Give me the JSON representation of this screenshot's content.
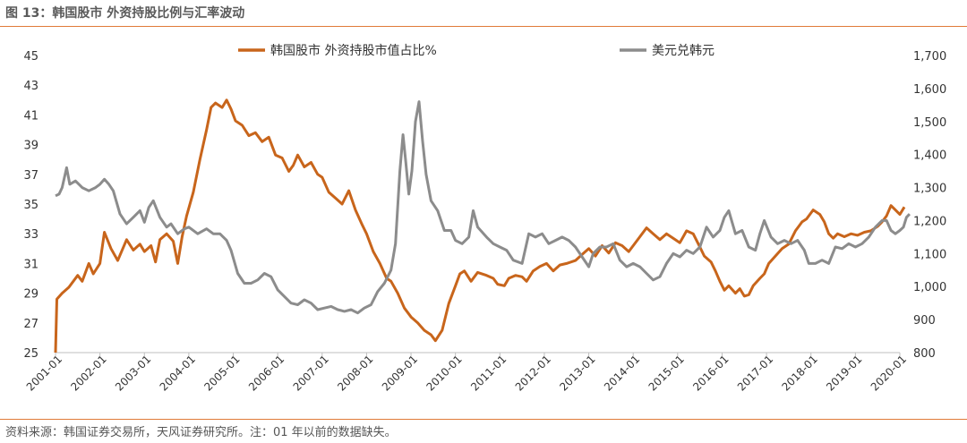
{
  "header": {
    "title": "图 13：韩国股市 外资持股比例与汇率波动"
  },
  "footer": {
    "source": "资料来源：韩国证券交易所，天风证券研究所。注：01 年以前的数据缺失。"
  },
  "colors": {
    "orange": "#C8651B",
    "gray": "#8C8C8C",
    "rule": "#E07B39"
  },
  "chart_data": {
    "type": "line",
    "title": "",
    "legend_placement": "top",
    "grid": false,
    "x_ticks": [
      "2001-01",
      "2002-01",
      "2003-01",
      "2004-01",
      "2005-01",
      "2006-01",
      "2007-01",
      "2008-01",
      "2009-01",
      "2010-01",
      "2011-01",
      "2012-01",
      "2013-01",
      "2014-01",
      "2015-01",
      "2016-01",
      "2017-01",
      "2018-01",
      "2019-01",
      "2020-01"
    ],
    "x_range": [
      2001.0,
      2020.0
    ],
    "y_left": {
      "range": [
        25,
        45
      ],
      "ticks": [
        "45",
        "43",
        "41",
        "39",
        "37",
        "35",
        "33",
        "31",
        "29",
        "27",
        "25"
      ]
    },
    "y_right": {
      "range": [
        800,
        1700
      ],
      "ticks": [
        "1,700",
        "1,600",
        "1,500",
        "1,400",
        "1,300",
        "1,200",
        "1,100",
        "1,000",
        "900",
        "800"
      ]
    },
    "series": [
      {
        "name": "韩国股市 外资持股市值占比%",
        "axis": "left",
        "color": "#C8651B",
        "points": [
          [
            2001.0,
            25.0
          ],
          [
            2001.03,
            28.6
          ],
          [
            2001.15,
            29.0
          ],
          [
            2001.3,
            29.4
          ],
          [
            2001.5,
            30.2
          ],
          [
            2001.6,
            29.8
          ],
          [
            2001.75,
            31.0
          ],
          [
            2001.85,
            30.3
          ],
          [
            2002.0,
            31.0
          ],
          [
            2002.1,
            33.1
          ],
          [
            2002.25,
            32.0
          ],
          [
            2002.4,
            31.2
          ],
          [
            2002.6,
            32.6
          ],
          [
            2002.75,
            31.9
          ],
          [
            2002.9,
            32.3
          ],
          [
            2003.0,
            31.8
          ],
          [
            2003.15,
            32.2
          ],
          [
            2003.25,
            31.1
          ],
          [
            2003.35,
            32.6
          ],
          [
            2003.5,
            33.0
          ],
          [
            2003.65,
            32.5
          ],
          [
            2003.75,
            31.0
          ],
          [
            2003.85,
            32.8
          ],
          [
            2003.95,
            34.2
          ],
          [
            2004.1,
            35.8
          ],
          [
            2004.25,
            38.0
          ],
          [
            2004.4,
            40.0
          ],
          [
            2004.5,
            41.5
          ],
          [
            2004.6,
            41.8
          ],
          [
            2004.75,
            41.5
          ],
          [
            2004.85,
            42.0
          ],
          [
            2004.95,
            41.4
          ],
          [
            2005.05,
            40.6
          ],
          [
            2005.2,
            40.3
          ],
          [
            2005.35,
            39.6
          ],
          [
            2005.5,
            39.8
          ],
          [
            2005.65,
            39.2
          ],
          [
            2005.8,
            39.5
          ],
          [
            2005.95,
            38.3
          ],
          [
            2006.1,
            38.1
          ],
          [
            2006.25,
            37.2
          ],
          [
            2006.35,
            37.6
          ],
          [
            2006.45,
            38.3
          ],
          [
            2006.6,
            37.5
          ],
          [
            2006.75,
            37.8
          ],
          [
            2006.9,
            37.0
          ],
          [
            2007.0,
            36.8
          ],
          [
            2007.15,
            35.8
          ],
          [
            2007.3,
            35.4
          ],
          [
            2007.45,
            35.0
          ],
          [
            2007.6,
            35.9
          ],
          [
            2007.75,
            34.6
          ],
          [
            2007.9,
            33.6
          ],
          [
            2008.0,
            33.0
          ],
          [
            2008.15,
            31.8
          ],
          [
            2008.3,
            31.0
          ],
          [
            2008.45,
            30.0
          ],
          [
            2008.55,
            29.8
          ],
          [
            2008.7,
            29.0
          ],
          [
            2008.85,
            28.0
          ],
          [
            2009.0,
            27.4
          ],
          [
            2009.15,
            27.0
          ],
          [
            2009.3,
            26.5
          ],
          [
            2009.45,
            26.2
          ],
          [
            2009.55,
            25.8
          ],
          [
            2009.7,
            26.5
          ],
          [
            2009.85,
            28.3
          ],
          [
            2010.0,
            29.5
          ],
          [
            2010.1,
            30.3
          ],
          [
            2010.2,
            30.5
          ],
          [
            2010.35,
            29.8
          ],
          [
            2010.5,
            30.4
          ],
          [
            2010.7,
            30.2
          ],
          [
            2010.85,
            30.0
          ],
          [
            2010.95,
            29.6
          ],
          [
            2011.1,
            29.5
          ],
          [
            2011.2,
            30.0
          ],
          [
            2011.35,
            30.2
          ],
          [
            2011.5,
            30.1
          ],
          [
            2011.6,
            29.8
          ],
          [
            2011.75,
            30.5
          ],
          [
            2011.9,
            30.8
          ],
          [
            2012.05,
            31.0
          ],
          [
            2012.2,
            30.5
          ],
          [
            2012.35,
            30.9
          ],
          [
            2012.5,
            31.0
          ],
          [
            2012.7,
            31.2
          ],
          [
            2012.85,
            31.6
          ],
          [
            2013.0,
            32.0
          ],
          [
            2013.15,
            31.5
          ],
          [
            2013.3,
            32.2
          ],
          [
            2013.45,
            31.7
          ],
          [
            2013.6,
            32.4
          ],
          [
            2013.75,
            32.2
          ],
          [
            2013.9,
            31.8
          ],
          [
            2014.0,
            32.2
          ],
          [
            2014.15,
            32.8
          ],
          [
            2014.3,
            33.4
          ],
          [
            2014.45,
            33.0
          ],
          [
            2014.6,
            32.6
          ],
          [
            2014.75,
            33.0
          ],
          [
            2014.9,
            32.7
          ],
          [
            2015.05,
            32.4
          ],
          [
            2015.2,
            33.2
          ],
          [
            2015.35,
            33.0
          ],
          [
            2015.5,
            32.1
          ],
          [
            2015.6,
            31.5
          ],
          [
            2015.75,
            31.1
          ],
          [
            2015.85,
            30.5
          ],
          [
            2015.95,
            29.8
          ],
          [
            2016.05,
            29.2
          ],
          [
            2016.15,
            29.5
          ],
          [
            2016.3,
            29.0
          ],
          [
            2016.4,
            29.3
          ],
          [
            2016.5,
            28.8
          ],
          [
            2016.6,
            28.9
          ],
          [
            2016.7,
            29.5
          ],
          [
            2016.85,
            30.0
          ],
          [
            2016.95,
            30.3
          ],
          [
            2017.05,
            31.0
          ],
          [
            2017.2,
            31.5
          ],
          [
            2017.35,
            32.0
          ],
          [
            2017.5,
            32.3
          ],
          [
            2017.65,
            33.2
          ],
          [
            2017.8,
            33.8
          ],
          [
            2017.9,
            34.0
          ],
          [
            2018.05,
            34.6
          ],
          [
            2018.2,
            34.3
          ],
          [
            2018.3,
            33.8
          ],
          [
            2018.4,
            33.0
          ],
          [
            2018.5,
            32.7
          ],
          [
            2018.6,
            33.0
          ],
          [
            2018.75,
            32.8
          ],
          [
            2018.9,
            33.0
          ],
          [
            2019.05,
            32.9
          ],
          [
            2019.2,
            33.1
          ],
          [
            2019.35,
            33.2
          ],
          [
            2019.5,
            33.5
          ],
          [
            2019.6,
            33.8
          ],
          [
            2019.7,
            34.2
          ],
          [
            2019.8,
            34.9
          ],
          [
            2019.9,
            34.6
          ],
          [
            2020.0,
            34.3
          ],
          [
            2020.1,
            34.8
          ]
        ]
      },
      {
        "name": "美元兑韩元",
        "axis": "right",
        "color": "#8C8C8C",
        "points": [
          [
            2001.0,
            1275
          ],
          [
            2001.08,
            1280
          ],
          [
            2001.15,
            1300
          ],
          [
            2001.25,
            1360
          ],
          [
            2001.32,
            1310
          ],
          [
            2001.45,
            1320
          ],
          [
            2001.6,
            1300
          ],
          [
            2001.75,
            1290
          ],
          [
            2001.9,
            1300
          ],
          [
            2002.0,
            1310
          ],
          [
            2002.1,
            1325
          ],
          [
            2002.2,
            1310
          ],
          [
            2002.3,
            1290
          ],
          [
            2002.45,
            1220
          ],
          [
            2002.6,
            1190
          ],
          [
            2002.75,
            1210
          ],
          [
            2002.9,
            1230
          ],
          [
            2003.0,
            1195
          ],
          [
            2003.1,
            1240
          ],
          [
            2003.2,
            1260
          ],
          [
            2003.35,
            1210
          ],
          [
            2003.5,
            1180
          ],
          [
            2003.6,
            1190
          ],
          [
            2003.75,
            1160
          ],
          [
            2003.9,
            1175
          ],
          [
            2004.0,
            1180
          ],
          [
            2004.2,
            1160
          ],
          [
            2004.4,
            1175
          ],
          [
            2004.55,
            1160
          ],
          [
            2004.7,
            1160
          ],
          [
            2004.85,
            1140
          ],
          [
            2004.95,
            1110
          ],
          [
            2005.1,
            1040
          ],
          [
            2005.25,
            1010
          ],
          [
            2005.4,
            1010
          ],
          [
            2005.55,
            1020
          ],
          [
            2005.7,
            1040
          ],
          [
            2005.85,
            1030
          ],
          [
            2006.0,
            990
          ],
          [
            2006.15,
            970
          ],
          [
            2006.3,
            950
          ],
          [
            2006.45,
            945
          ],
          [
            2006.6,
            960
          ],
          [
            2006.75,
            950
          ],
          [
            2006.9,
            930
          ],
          [
            2007.05,
            935
          ],
          [
            2007.2,
            940
          ],
          [
            2007.35,
            930
          ],
          [
            2007.5,
            925
          ],
          [
            2007.65,
            930
          ],
          [
            2007.8,
            920
          ],
          [
            2007.95,
            935
          ],
          [
            2008.1,
            945
          ],
          [
            2008.25,
            985
          ],
          [
            2008.4,
            1010
          ],
          [
            2008.55,
            1050
          ],
          [
            2008.65,
            1130
          ],
          [
            2008.75,
            1350
          ],
          [
            2008.82,
            1460
          ],
          [
            2008.88,
            1380
          ],
          [
            2008.95,
            1280
          ],
          [
            2009.02,
            1350
          ],
          [
            2009.1,
            1500
          ],
          [
            2009.18,
            1560
          ],
          [
            2009.26,
            1440
          ],
          [
            2009.34,
            1340
          ],
          [
            2009.45,
            1260
          ],
          [
            2009.6,
            1230
          ],
          [
            2009.75,
            1170
          ],
          [
            2009.9,
            1170
          ],
          [
            2010.0,
            1140
          ],
          [
            2010.15,
            1130
          ],
          [
            2010.3,
            1150
          ],
          [
            2010.4,
            1230
          ],
          [
            2010.5,
            1180
          ],
          [
            2010.7,
            1150
          ],
          [
            2010.85,
            1130
          ],
          [
            2011.0,
            1120
          ],
          [
            2011.15,
            1110
          ],
          [
            2011.3,
            1080
          ],
          [
            2011.5,
            1070
          ],
          [
            2011.65,
            1160
          ],
          [
            2011.8,
            1150
          ],
          [
            2011.95,
            1160
          ],
          [
            2012.1,
            1130
          ],
          [
            2012.25,
            1140
          ],
          [
            2012.4,
            1150
          ],
          [
            2012.55,
            1140
          ],
          [
            2012.7,
            1120
          ],
          [
            2012.85,
            1090
          ],
          [
            2013.0,
            1060
          ],
          [
            2013.1,
            1100
          ],
          [
            2013.25,
            1120
          ],
          [
            2013.4,
            1120
          ],
          [
            2013.55,
            1130
          ],
          [
            2013.7,
            1080
          ],
          [
            2013.85,
            1060
          ],
          [
            2014.0,
            1070
          ],
          [
            2014.15,
            1060
          ],
          [
            2014.3,
            1040
          ],
          [
            2014.45,
            1020
          ],
          [
            2014.6,
            1030
          ],
          [
            2014.75,
            1070
          ],
          [
            2014.9,
            1100
          ],
          [
            2015.05,
            1090
          ],
          [
            2015.2,
            1110
          ],
          [
            2015.35,
            1100
          ],
          [
            2015.5,
            1120
          ],
          [
            2015.65,
            1180
          ],
          [
            2015.8,
            1150
          ],
          [
            2015.95,
            1170
          ],
          [
            2016.05,
            1210
          ],
          [
            2016.15,
            1230
          ],
          [
            2016.3,
            1160
          ],
          [
            2016.45,
            1170
          ],
          [
            2016.6,
            1120
          ],
          [
            2016.75,
            1110
          ],
          [
            2016.85,
            1160
          ],
          [
            2016.95,
            1200
          ],
          [
            2017.1,
            1150
          ],
          [
            2017.25,
            1130
          ],
          [
            2017.4,
            1140
          ],
          [
            2017.55,
            1130
          ],
          [
            2017.7,
            1140
          ],
          [
            2017.85,
            1110
          ],
          [
            2017.95,
            1070
          ],
          [
            2018.1,
            1070
          ],
          [
            2018.25,
            1080
          ],
          [
            2018.4,
            1070
          ],
          [
            2018.55,
            1120
          ],
          [
            2018.7,
            1115
          ],
          [
            2018.85,
            1130
          ],
          [
            2019.0,
            1120
          ],
          [
            2019.15,
            1130
          ],
          [
            2019.3,
            1150
          ],
          [
            2019.45,
            1180
          ],
          [
            2019.6,
            1200
          ],
          [
            2019.7,
            1200
          ],
          [
            2019.8,
            1170
          ],
          [
            2019.9,
            1160
          ],
          [
            2020.0,
            1170
          ],
          [
            2020.08,
            1180
          ],
          [
            2020.15,
            1210
          ],
          [
            2020.22,
            1220
          ]
        ]
      }
    ]
  }
}
